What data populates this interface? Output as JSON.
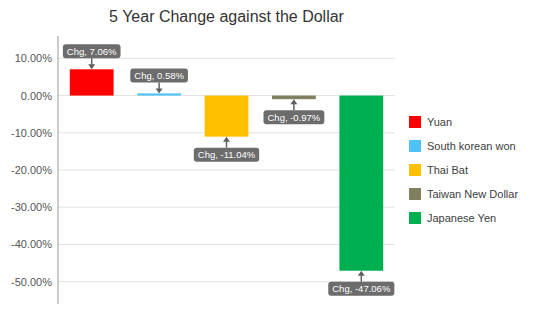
{
  "chart_data": {
    "type": "bar",
    "title": "5 Year Change against the Dollar",
    "categories": [
      "Yuan",
      "South korean won",
      "Thai Bat",
      "Taiwan New Dollar",
      "Japanese Yen"
    ],
    "values": [
      7.06,
      0.58,
      -11.04,
      -0.97,
      -47.06
    ],
    "value_labels": [
      "Chg, 7.06%",
      "Chg, 0.58%",
      "Chg, -11.04%",
      "Chg, -0.97%",
      "Chg, -47.06%"
    ],
    "data_labels": true,
    "colors": [
      "#ff0000",
      "#4fc3f7",
      "#ffc000",
      "#808060",
      "#00b050"
    ],
    "ylim": [
      -56,
      16
    ],
    "yticks": [
      {
        "value": 10,
        "label": "10.00%"
      },
      {
        "value": 0,
        "label": "0.00%"
      },
      {
        "value": -10,
        "label": "-10.00%"
      },
      {
        "value": -20,
        "label": "-20.00%"
      },
      {
        "value": -30,
        "label": "-30.00%"
      },
      {
        "value": -40,
        "label": "-40.00%"
      },
      {
        "value": -50,
        "label": "-50.00%"
      }
    ],
    "grid": true,
    "legend": "right",
    "tick_labels": "y"
  }
}
